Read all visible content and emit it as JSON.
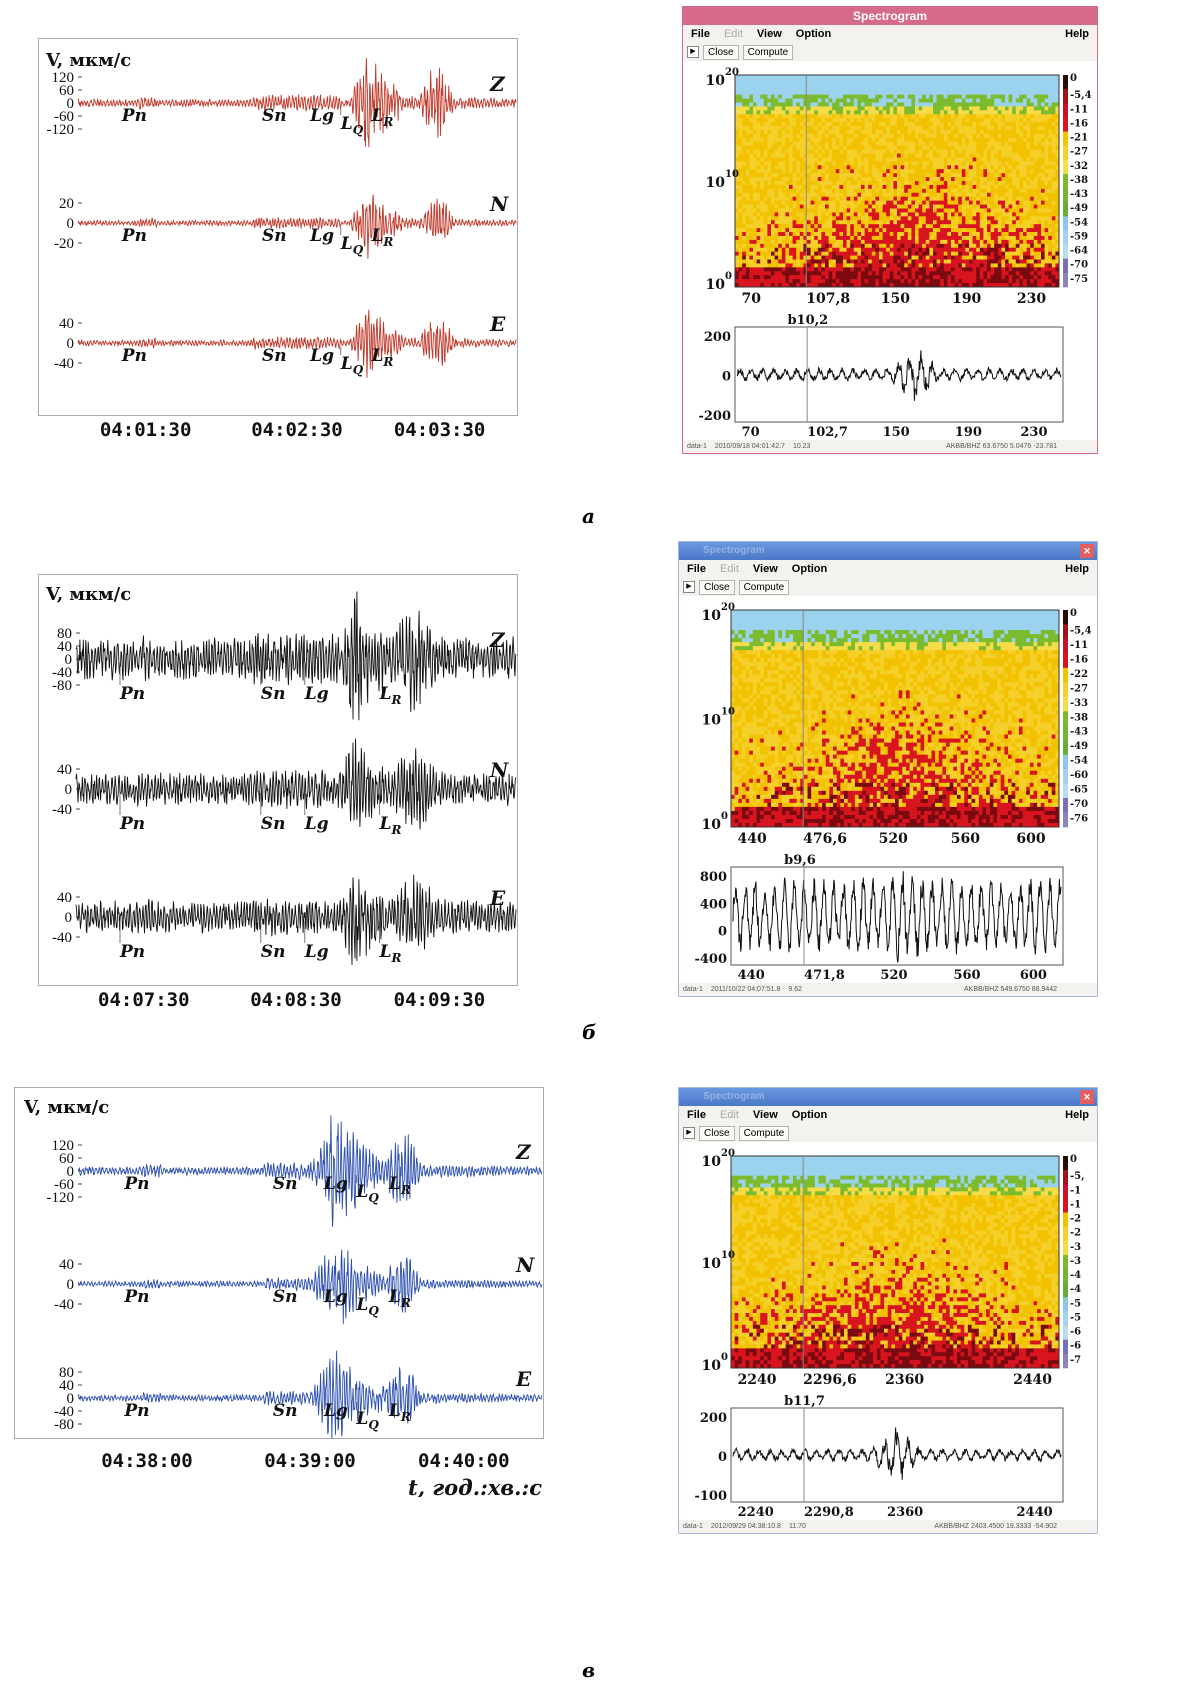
{
  "panels": [
    {
      "label": "а",
      "color": "#c0392b",
      "y_title": "V, мкм/с",
      "channels": [
        {
          "name": "Z",
          "ticks": [
            "120",
            "60",
            "0",
            "-60",
            "-120"
          ],
          "phases": [
            "Pn",
            "Sn",
            "Lg",
            "L",
            "L"
          ],
          "phase_subs": [
            "",
            "",
            "",
            "Q",
            "R"
          ]
        },
        {
          "name": "N",
          "ticks": [
            "20",
            "0",
            "-20"
          ],
          "phases": [
            "Pn",
            "Sn",
            "Lg",
            "L",
            "L"
          ],
          "phase_subs": [
            "",
            "",
            "",
            "Q",
            "R"
          ]
        },
        {
          "name": "E",
          "ticks": [
            "40",
            "0",
            "-40"
          ],
          "phases": [
            "Pn",
            "Sn",
            "Lg",
            "L",
            "L"
          ],
          "phase_subs": [
            "",
            "",
            "",
            "Q",
            "R"
          ]
        }
      ],
      "time_labels": [
        "04:01:30",
        "04:02:30",
        "04:03:30"
      ],
      "spectrogram": {
        "title": "Spectrogram",
        "menu": [
          "File",
          "Edit",
          "View",
          "Option",
          "Help"
        ],
        "buttons": [
          "Close",
          "Compute"
        ],
        "y_ticks": [
          "10",
          "10",
          "10"
        ],
        "y_exps": [
          "20",
          "10",
          "0"
        ],
        "x_ticks": [
          "70",
          "107,8",
          "150",
          "190",
          "230"
        ],
        "scale": [
          "0",
          "-5,4",
          "-11",
          "-16",
          "-21",
          "-27",
          "-32",
          "-38",
          "-43",
          "-49",
          "-54",
          "-59",
          "-64",
          "-70",
          "-75"
        ],
        "wave_label": "b10,2",
        "wave_ticks": [
          "200",
          "0",
          "-200"
        ],
        "wave_x": [
          "70",
          "102,7",
          "150",
          "190",
          "230"
        ],
        "status": [
          "data-1",
          "2010/09/18 04:01:42.7",
          "10.23",
          "AKBB/BHZ  63.6750  5.0476  -23.781"
        ]
      }
    },
    {
      "label": "б",
      "color": "#111111",
      "y_title": "V, мкм/с",
      "channels": [
        {
          "name": "Z",
          "ticks": [
            "80",
            "40",
            "0",
            "-40",
            "-80"
          ],
          "phases": [
            "Pn",
            "Sn",
            "Lg",
            "L"
          ],
          "phase_subs": [
            "",
            "",
            "",
            "R"
          ]
        },
        {
          "name": "N",
          "ticks": [
            "40",
            "0",
            "-40"
          ],
          "phases": [
            "Pn",
            "Sn",
            "Lg",
            "L"
          ],
          "phase_subs": [
            "",
            "",
            "",
            "R"
          ]
        },
        {
          "name": "E",
          "ticks": [
            "40",
            "0",
            "-40"
          ],
          "phases": [
            "Pn",
            "Sn",
            "Lg",
            "L"
          ],
          "phase_subs": [
            "",
            "",
            "",
            "R"
          ]
        }
      ],
      "time_labels": [
        "04:07:30",
        "04:08:30",
        "04:09:30"
      ],
      "spectrogram": {
        "title": "Spectrogram",
        "menu": [
          "File",
          "Edit",
          "View",
          "Option",
          "Help"
        ],
        "buttons": [
          "Close",
          "Compute"
        ],
        "y_ticks": [
          "10",
          "10",
          "10"
        ],
        "y_exps": [
          "20",
          "10",
          "0"
        ],
        "x_ticks": [
          "440",
          "476,6",
          "520",
          "560",
          "600"
        ],
        "scale": [
          "0",
          "-5,4",
          "-11",
          "-16",
          "-22",
          "-27",
          "-33",
          "-38",
          "-43",
          "-49",
          "-54",
          "-60",
          "-65",
          "-70",
          "-76"
        ],
        "wave_label": "b9,6",
        "wave_ticks": [
          "800",
          "400",
          "0",
          "-400"
        ],
        "wave_x": [
          "440",
          "471,8",
          "520",
          "560",
          "600"
        ],
        "status": [
          "data-1",
          "2011/10/22 04:07:51.8",
          "9.62",
          "AKBB/BHZ  549.6750  88.9442"
        ]
      }
    },
    {
      "label": "в",
      "color": "#2c4fb0",
      "y_title": "V, мкм/с",
      "channels": [
        {
          "name": "Z",
          "ticks": [
            "120",
            "60",
            "0",
            "-60",
            "-120"
          ],
          "phases": [
            "Pn",
            "Sn",
            "Lg",
            "L",
            "L"
          ],
          "phase_subs": [
            "",
            "",
            "",
            "Q",
            "R"
          ]
        },
        {
          "name": "N",
          "ticks": [
            "40",
            "0",
            "-40"
          ],
          "phases": [
            "Pn",
            "Sn",
            "Lg",
            "L",
            "L"
          ],
          "phase_subs": [
            "",
            "",
            "",
            "Q",
            "R"
          ]
        },
        {
          "name": "E",
          "ticks": [
            "80",
            "40",
            "0",
            "-40",
            "-80"
          ],
          "phases": [
            "Pn",
            "Sn",
            "Lg",
            "L",
            "L"
          ],
          "phase_subs": [
            "",
            "",
            "",
            "Q",
            "R"
          ]
        }
      ],
      "time_labels": [
        "04:38:00",
        "04:39:00",
        "04:40:00"
      ],
      "x_title": "t, год.:хв.:с",
      "spectrogram": {
        "title": "Spectrogram",
        "menu": [
          "File",
          "Edit",
          "View",
          "Option",
          "Help"
        ],
        "buttons": [
          "Close",
          "Compute"
        ],
        "y_ticks": [
          "10",
          "10",
          "10"
        ],
        "y_exps": [
          "20",
          "10",
          "0"
        ],
        "x_ticks": [
          "2240",
          "2296,6",
          "2360",
          "2440"
        ],
        "scale": [
          "0",
          "-5,",
          "-1",
          "-1",
          "-2",
          "-2",
          "-3",
          "-3",
          "-4",
          "-4",
          "-5",
          "-5",
          "-6",
          "-6",
          "-7"
        ],
        "wave_label": "b11,7",
        "wave_ticks": [
          "200",
          "0",
          "-100"
        ],
        "wave_x": [
          "2240",
          "2290,8",
          "2360",
          "2440"
        ],
        "status": [
          "data-1",
          "2012/09/29 04:38:10.8",
          "11.70",
          "AKBB/BHZ  2403.4500  19.3333  -54.902"
        ]
      }
    }
  ],
  "colors": {
    "scale_swatches": [
      "#2a0a0a",
      "#a3131b",
      "#c8102e",
      "#d8151f",
      "#f2c200",
      "#f5d02a",
      "#f7dc4a",
      "#7dbb2e",
      "#74b539",
      "#6aac3b",
      "#8ec8e8",
      "#a3d3ec",
      "#b5dcef",
      "#7a6fb0",
      "#8c83bc"
    ],
    "win_title_a": "#d56a8a",
    "win_title_bc": "#5f8fd8"
  }
}
